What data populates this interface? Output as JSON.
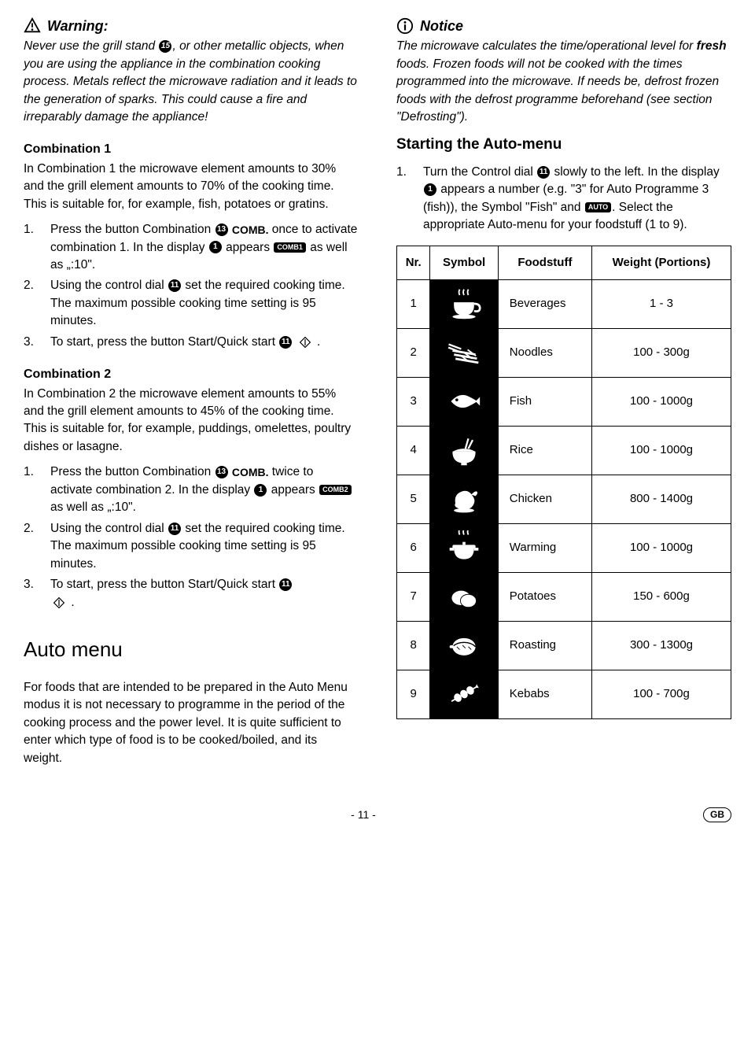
{
  "left": {
    "warning": {
      "title": "Warning:",
      "text_pre": "Never use the grill stand ",
      "badge": "15",
      "text_post": ", or other metallic objects, when you are using the appliance in the combination cooking process. Metals reflect the microwave radiation and it leads to the generation of sparks. This could cause a fire and irreparably damage the appliance!"
    },
    "combo1": {
      "title": "Combination 1",
      "intro": "In Combination 1 the microwave element amounts to 30% and the grill element amounts to 70% of the cooking time. This is suitable for, for example, fish, potatoes or gratins.",
      "step1_a": "Press the button Combination ",
      "step1_badge": "13",
      "step1_label": "COMB.",
      "step1_b": " once to activate combination 1. In the display ",
      "step1_badge2": "1",
      "step1_c": " appears ",
      "step1_chip": "COMB1",
      "step1_d": " as well as „:10\".",
      "step2_a": "Using the control dial ",
      "step2_badge": "11",
      "step2_b": " set the required cooking time. The maximum possible cooking time setting is 95 minutes.",
      "step3_a": "To start, press the button Start/Quick start ",
      "step3_badge": "11",
      "step3_b": " ."
    },
    "combo2": {
      "title": "Combination 2",
      "intro": "In Combination 2 the microwave element amounts to 55% and the grill element amounts to 45% of the cooking time. This is suitable for, for example, puddings, omelettes, poultry dishes or lasagne.",
      "step1_a": "Press the button Combination ",
      "step1_badge": "13",
      "step1_label": "COMB.",
      "step1_b": " twice to activate combination 2. In the display ",
      "step1_badge2": "1",
      "step1_c": " appears ",
      "step1_chip": "COMB2",
      "step1_d": " as well as „:10\".",
      "step2_a": "Using the control dial ",
      "step2_badge": "11",
      "step2_b": " set the required cooking time. The maximum possible cooking time setting is 95 minutes.",
      "step3_a": "To start, press the button Start/Quick start ",
      "step3_badge": "11",
      "step3_b": "."
    },
    "automenu": {
      "title": "Auto menu",
      "intro": "For foods that are intended to be prepared in the Auto Menu modus it is not necessary to programme in the period of the cooking process and the power level. It is quite sufficient to enter which type of food is to be cooked/boiled, and its weight."
    }
  },
  "right": {
    "notice": {
      "title": "Notice",
      "text_a": "The microwave calculates the time/operational level for ",
      "bold": "fresh",
      "text_b": " foods. Frozen foods will not be cooked with the times programmed into the microwave. If needs be, defrost frozen foods with the defrost programme beforehand (see section \"Defrosting\")."
    },
    "starting": {
      "title": "Starting the Auto-menu",
      "step1_a": "Turn the Control dial ",
      "step1_badge": "11",
      "step1_b": " slowly to the left. In the display ",
      "step1_badge2": "1",
      "step1_c": " appears a number (e.g. \"3\" for Auto Programme 3 (fish)), the Symbol \"Fish\" and ",
      "step1_chip": "AUTO",
      "step1_d": ". Select the appropriate Auto-menu for your foodstuff (1 to 9)."
    },
    "table": {
      "headers": {
        "nr": "Nr.",
        "symbol": "Symbol",
        "food": "Foodstuff",
        "weight": "Weight (Portions)"
      },
      "rows": [
        {
          "nr": "1",
          "food": "Beverages",
          "weight": "1 - 3",
          "icon": "cup"
        },
        {
          "nr": "2",
          "food": "Noodles",
          "weight": "100 - 300g",
          "icon": "noodles"
        },
        {
          "nr": "3",
          "food": "Fish",
          "weight": "100 - 1000g",
          "icon": "fish"
        },
        {
          "nr": "4",
          "food": "Rice",
          "weight": "100 - 1000g",
          "icon": "rice"
        },
        {
          "nr": "5",
          "food": "Chicken",
          "weight": "800 - 1400g",
          "icon": "chicken"
        },
        {
          "nr": "6",
          "food": "Warming",
          "weight": "100 - 1000g",
          "icon": "pot"
        },
        {
          "nr": "7",
          "food": "Potatoes",
          "weight": "150 - 600g",
          "icon": "potato"
        },
        {
          "nr": "8",
          "food": "Roasting",
          "weight": "300 - 1300g",
          "icon": "roast"
        },
        {
          "nr": "9",
          "food": "Kebabs",
          "weight": "100 - 700g",
          "icon": "kebab"
        }
      ]
    }
  },
  "footer": {
    "page": "- 11 -",
    "lang": "GB"
  }
}
